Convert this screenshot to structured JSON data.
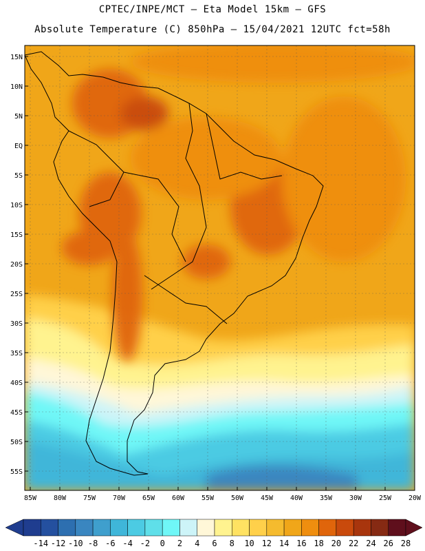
{
  "title_line1": "CPTEC/INPE/MCT –  Eta Model 15km – GFS",
  "title_line2": "Absolute Temperature (C) 850hPa – 15/04/2021 12UTC fct=58h",
  "lat_labels": [
    "15N",
    "10N",
    "5N",
    "EQ",
    "5S",
    "10S",
    "15S",
    "20S",
    "25S",
    "30S",
    "35S",
    "40S",
    "45S",
    "50S",
    "55S"
  ],
  "lon_labels": [
    "85W",
    "80W",
    "75W",
    "70W",
    "65W",
    "60W",
    "55W",
    "50W",
    "45W",
    "40W",
    "35W",
    "30W",
    "25W",
    "20W"
  ],
  "colorbar": {
    "labels": [
      "-14",
      "-12",
      "-10",
      "-8",
      "-6",
      "-4",
      "-2",
      "0",
      "2",
      "4",
      "6",
      "8",
      "10",
      "12",
      "14",
      "16",
      "18",
      "20",
      "22",
      "24",
      "26",
      "28"
    ],
    "colors": [
      "#1f3d8f",
      "#24509f",
      "#2d6fb0",
      "#3a86c0",
      "#3f9fcd",
      "#3fb6d9",
      "#4ccbe3",
      "#5fdfe9",
      "#6ff7f7",
      "#cdf4f8",
      "#fff7d8",
      "#fff38f",
      "#ffe262",
      "#ffd04a",
      "#f5bb2e",
      "#f0a619",
      "#ef8e0f",
      "#e0650b",
      "#c94a0c",
      "#a8350d",
      "#862a13",
      "#5f0f1c"
    ]
  }
}
